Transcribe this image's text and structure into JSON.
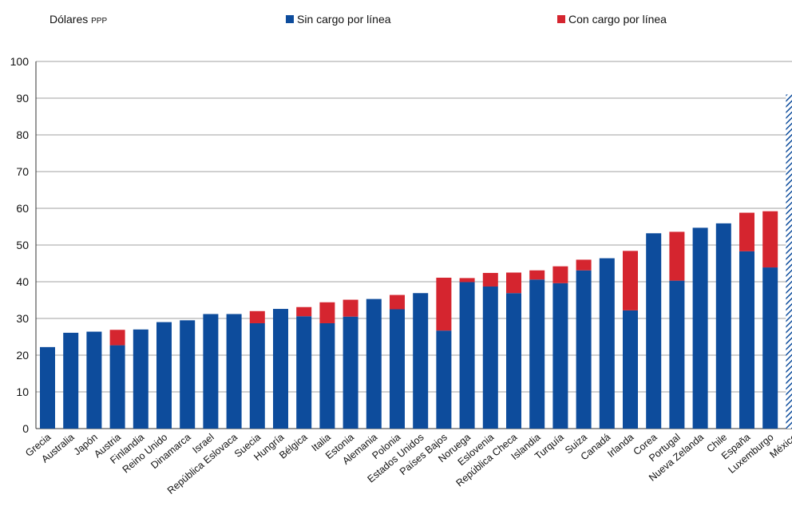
{
  "unit_label": {
    "main": "Dólares",
    "suffix": "PPP"
  },
  "legend": [
    {
      "name": "Sin cargo por línea",
      "color": "#0d4c9c"
    },
    {
      "name": "Con cargo por línea",
      "color": "#d5252f"
    }
  ],
  "colors": {
    "sin": "#0d4c9c",
    "con": "#d5252f",
    "grid": "#a0a0a0",
    "axis": "#333333",
    "hatch": "#0d4c9c"
  },
  "chart_data": {
    "type": "bar",
    "stacked": true,
    "ylim": [
      0,
      100
    ],
    "yticks": [
      0,
      10,
      20,
      30,
      40,
      50,
      60,
      70,
      80,
      90,
      100
    ],
    "grid": true,
    "legend_position": "top",
    "categories": [
      "Grecia",
      "Australia",
      "Japón",
      "Austria",
      "Finlandia",
      "Reino Unido",
      "Dinamarca",
      "Israel",
      "República Eslovaca",
      "Suecia",
      "Hungría",
      "Bélgica",
      "Italia",
      "Estonia",
      "Alemania",
      "Polonia",
      "Estados Unidos",
      "Países Bajos",
      "Noruega",
      "Eslovenia",
      "República Checa",
      "Islandia",
      "Turquía",
      "Suiza",
      "Canadá",
      "Irlanda",
      "Corea",
      "Portugal",
      "Nueva Zelanda",
      "Chile",
      "España",
      "Luxemburgo",
      "México"
    ],
    "series": [
      {
        "name": "Sin cargo por línea",
        "values": [
          22.2,
          26.1,
          26.4,
          22.7,
          27.0,
          29.0,
          29.5,
          31.2,
          31.2,
          28.7,
          32.6,
          30.6,
          28.7,
          30.5,
          35.3,
          32.5,
          36.9,
          26.7,
          39.9,
          38.7,
          36.9,
          40.6,
          39.6,
          43.1,
          46.4,
          32.2,
          53.2,
          40.3,
          54.7,
          55.9,
          48.3,
          43.9,
          91.0
        ]
      },
      {
        "name": "Con cargo por línea",
        "values": [
          0,
          0,
          0,
          4.2,
          0,
          0,
          0,
          0,
          0,
          3.3,
          0,
          2.5,
          5.7,
          4.6,
          0,
          3.9,
          0,
          14.4,
          1.1,
          3.7,
          5.6,
          2.5,
          4.6,
          2.9,
          0,
          16.2,
          0,
          13.3,
          0,
          0,
          10.5,
          15.3,
          0
        ]
      }
    ],
    "hatched_categories": [
      "México"
    ]
  }
}
